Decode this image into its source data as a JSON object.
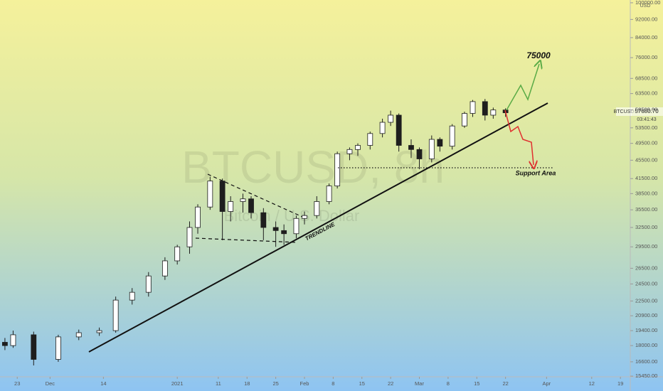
{
  "chart_data": {
    "type": "candlestick",
    "watermark": "BTCUSD, 8h",
    "subtitle": "Bitcoin / U.S. Dollar",
    "symbol": "BTCUSD",
    "last_price": "57680.70",
    "countdown": "03:41:43",
    "currency": "USD",
    "annotations": {
      "target": "75000",
      "support": "Support Area",
      "trendline": "TRENDLINE"
    },
    "log_scale": true,
    "up_color": "#ffffff",
    "down_color": "#1e1e1e",
    "x": [
      -3,
      -1,
      4,
      10,
      15,
      20,
      24,
      28,
      32,
      36,
      39,
      42,
      44,
      47,
      50,
      52,
      55,
      57,
      60,
      63,
      65,
      68,
      70,
      73,
      76,
      78,
      81,
      83,
      86,
      89,
      91,
      93,
      96,
      98,
      101,
      103,
      106,
      109,
      111,
      114,
      116,
      119
    ],
    "open": [
      18300,
      18000,
      19000,
      16800,
      18800,
      19200,
      19400,
      22600,
      23500,
      25500,
      27500,
      29500,
      32500,
      36000,
      41000,
      35200,
      37000,
      37500,
      35000,
      32500,
      32000,
      31500,
      34000,
      34500,
      37000,
      40000,
      47000,
      48000,
      49000,
      52000,
      55000,
      57000,
      49000,
      48000,
      45800,
      50500,
      48800,
      54000,
      57500,
      61000,
      57000,
      58500
    ],
    "high": [
      18700,
      19400,
      19300,
      19000,
      19500,
      19700,
      23000,
      24000,
      26000,
      28000,
      29800,
      33500,
      36500,
      41900,
      41500,
      38000,
      38500,
      38000,
      35800,
      33500,
      33000,
      34500,
      35200,
      38000,
      40500,
      47500,
      48500,
      49500,
      52500,
      56000,
      58300,
      57500,
      50500,
      48500,
      51500,
      51000,
      54500,
      58000,
      61500,
      61800,
      59200,
      59000
    ],
    "low": [
      17600,
      17800,
      16300,
      16600,
      18500,
      18900,
      19200,
      22100,
      23000,
      25000,
      27000,
      28500,
      31500,
      35500,
      30500,
      33500,
      35000,
      34000,
      30500,
      29500,
      29800,
      30800,
      33000,
      34000,
      36500,
      39500,
      45500,
      46500,
      48000,
      51000,
      54000,
      47500,
      46000,
      43500,
      45000,
      47500,
      48000,
      53500,
      56500,
      55500,
      56000,
      56500
    ],
    "close": [
      18000,
      19000,
      16800,
      18800,
      19200,
      19400,
      22600,
      23500,
      25500,
      27500,
      29500,
      32500,
      36000,
      41000,
      35200,
      37000,
      37500,
      35000,
      32500,
      32000,
      31500,
      34000,
      34500,
      37000,
      40000,
      47000,
      48000,
      49000,
      52000,
      55000,
      57000,
      49000,
      48000,
      45800,
      50500,
      48800,
      54000,
      57500,
      61000,
      57000,
      58500,
      57680
    ],
    "xlim": [
      -4.2,
      149.4
    ],
    "xticks": [
      {
        "value": 0,
        "label": "23"
      },
      {
        "value": 8,
        "label": "Dec"
      },
      {
        "value": 21,
        "label": "14"
      },
      {
        "value": 39,
        "label": "2021"
      },
      {
        "value": 49,
        "label": "11"
      },
      {
        "value": 56,
        "label": "18"
      },
      {
        "value": 63,
        "label": "25"
      },
      {
        "value": 70,
        "label": "Feb"
      },
      {
        "value": 77,
        "label": "8"
      },
      {
        "value": 84,
        "label": "15"
      },
      {
        "value": 91,
        "label": "22"
      },
      {
        "value": 98,
        "label": "Mar"
      },
      {
        "value": 105,
        "label": "8"
      },
      {
        "value": 112,
        "label": "15"
      },
      {
        "value": 119,
        "label": "22"
      },
      {
        "value": 129,
        "label": "Apr"
      },
      {
        "value": 140,
        "label": "12"
      },
      {
        "value": 147,
        "label": "19"
      }
    ],
    "ylim": [
      15400,
      101400
    ],
    "yticks": [
      {
        "value": 15450,
        "label": "15450.00"
      },
      {
        "value": 16600,
        "label": "16600.00"
      },
      {
        "value": 18000,
        "label": "18000.00"
      },
      {
        "value": 19400,
        "label": "19400.00"
      },
      {
        "value": 20900,
        "label": "20900.00"
      },
      {
        "value": 22500,
        "label": "22500.00"
      },
      {
        "value": 24500,
        "label": "24500.00"
      },
      {
        "value": 26500,
        "label": "26500.00"
      },
      {
        "value": 29500,
        "label": "29500.00"
      },
      {
        "value": 32500,
        "label": "32500.00"
      },
      {
        "value": 35500,
        "label": "35500.00"
      },
      {
        "value": 38500,
        "label": "38500.00"
      },
      {
        "value": 41500,
        "label": "41500.00"
      },
      {
        "value": 45500,
        "label": "45500.00"
      },
      {
        "value": 49500,
        "label": "49500.00"
      },
      {
        "value": 53500,
        "label": "53500.00"
      },
      {
        "value": 58500,
        "label": "58500.00"
      },
      {
        "value": 63500,
        "label": "63500.00"
      },
      {
        "value": 68500,
        "label": "68500.00"
      },
      {
        "value": 76000,
        "label": "76000.00"
      },
      {
        "value": 84000,
        "label": "84000.00"
      },
      {
        "value": 92000,
        "label": "92000.00"
      },
      {
        "value": 100000,
        "label": "100000.00"
      }
    ]
  }
}
